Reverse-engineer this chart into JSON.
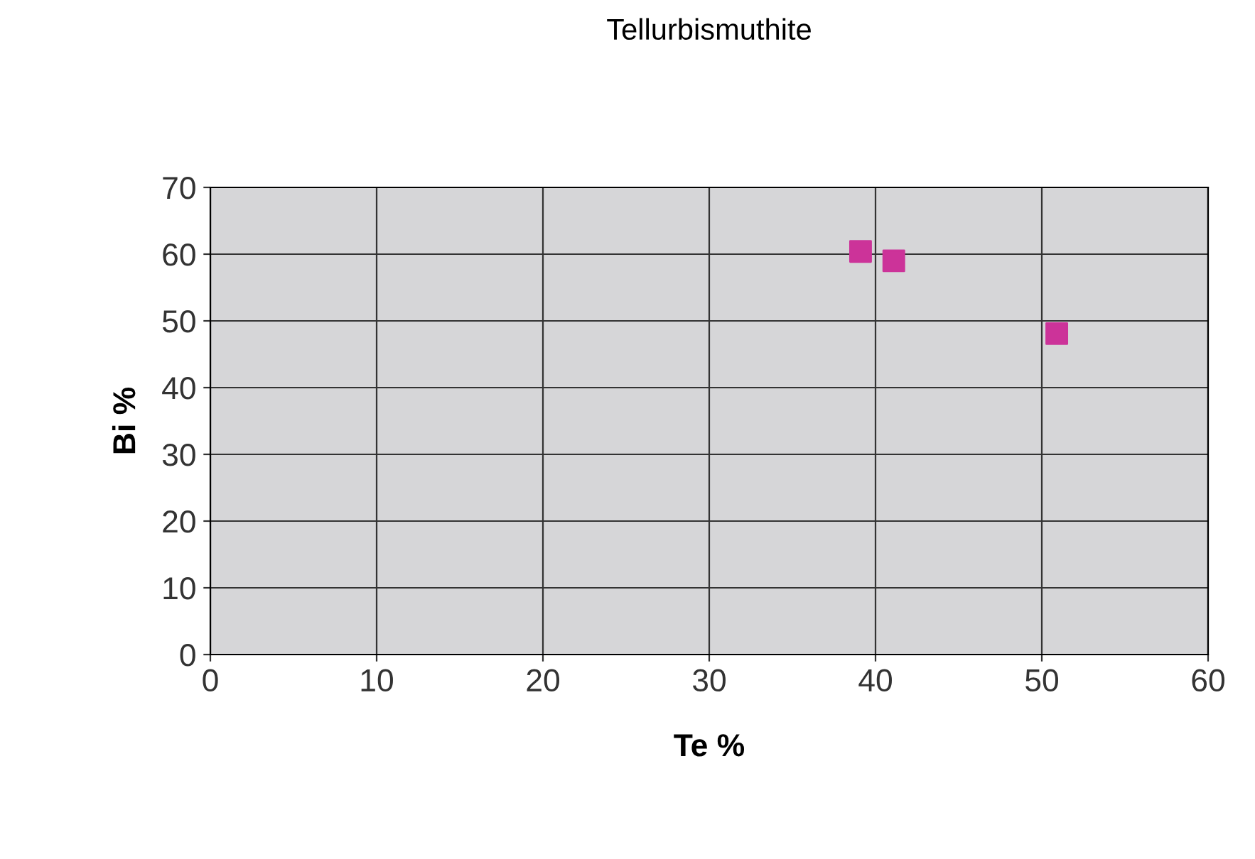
{
  "chart_data": {
    "type": "scatter",
    "title": "Tellurbismuthite",
    "xlabel": "Te %",
    "ylabel": "Bi %",
    "x": [
      39.1,
      41.1,
      50.9
    ],
    "series": [
      {
        "color": "#cc3399",
        "values": [
          60.4,
          59.0,
          48.1
        ]
      }
    ],
    "xlim": [
      0,
      60
    ],
    "xticks": [
      0,
      10,
      20,
      30,
      40,
      50,
      60
    ],
    "ylim": [
      0,
      70
    ],
    "yticks": [
      0,
      10,
      20,
      30,
      40,
      50,
      60,
      70
    ],
    "grid": true,
    "marker": "square",
    "legend": false
  }
}
